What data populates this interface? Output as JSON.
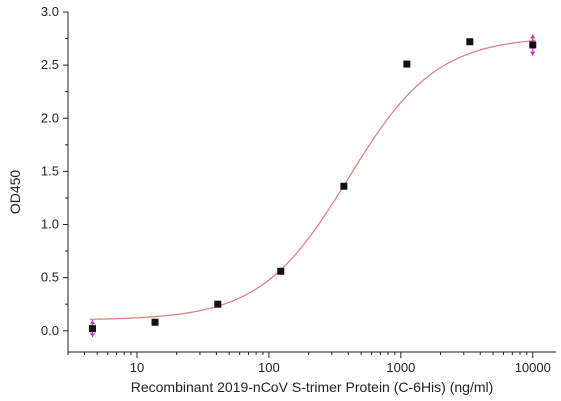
{
  "chart_data": {
    "type": "scatter",
    "title": "",
    "xlabel": "Recombinant 2019-nCoV S-trimer Protein (C-6His) (ng/ml)",
    "ylabel": "OD450",
    "x_scale": "log",
    "xlim": [
      3,
      15000
    ],
    "ylim": [
      -0.2,
      3.0
    ],
    "x_ticks": [
      10,
      100,
      1000,
      10000
    ],
    "x_tick_labels": [
      "10",
      "100",
      "1000",
      "10000"
    ],
    "y_ticks": [
      0.0,
      0.5,
      1.0,
      1.5,
      2.0,
      2.5,
      3.0
    ],
    "y_tick_labels": [
      "0.0",
      "0.5",
      "1.0",
      "1.5",
      "2.0",
      "2.5",
      "3.0"
    ],
    "grid": false,
    "points": [
      {
        "x": 4.6,
        "y": 0.02,
        "err": 0.08
      },
      {
        "x": 13.7,
        "y": 0.08
      },
      {
        "x": 41,
        "y": 0.25
      },
      {
        "x": 123,
        "y": 0.56
      },
      {
        "x": 370,
        "y": 1.36
      },
      {
        "x": 1111,
        "y": 2.51
      },
      {
        "x": 3333,
        "y": 2.72
      },
      {
        "x": 10000,
        "y": 2.69,
        "err": 0.1
      }
    ],
    "fit_curve": {
      "bottom": 0.1,
      "top": 2.77,
      "ec50": 400,
      "hill": 1.3
    },
    "colors": {
      "points": "#111111",
      "fit": "#e07a7a",
      "error_bars": "#cc33cc",
      "axes": "#222222"
    }
  }
}
